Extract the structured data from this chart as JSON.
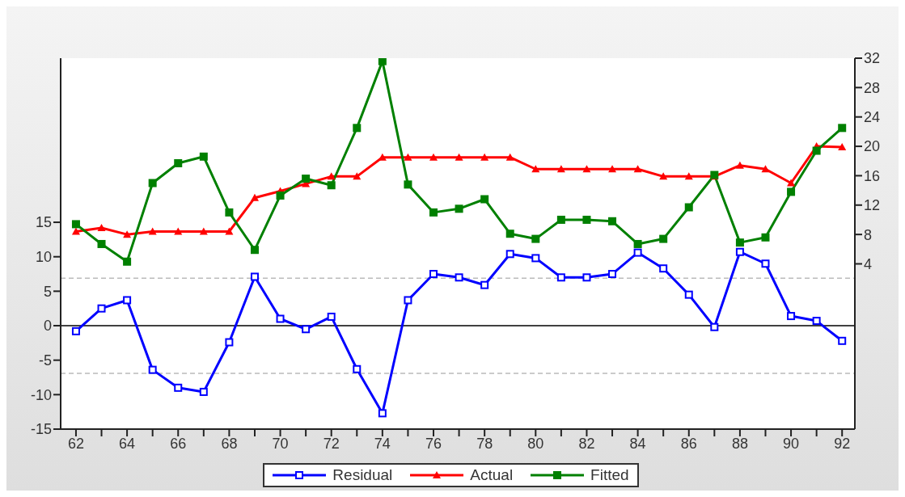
{
  "chart_data": {
    "type": "line",
    "x": [
      62,
      63,
      64,
      65,
      66,
      67,
      68,
      69,
      70,
      71,
      72,
      73,
      74,
      75,
      76,
      77,
      78,
      79,
      80,
      81,
      82,
      83,
      84,
      85,
      86,
      87,
      88,
      89,
      90,
      91,
      92
    ],
    "series": [
      {
        "name": "Residual",
        "color": "#0000ff",
        "marker": "square",
        "axis": "y",
        "values": [
          -0.8,
          2.5,
          3.7,
          -6.4,
          -9.0,
          -9.6,
          -2.4,
          7.1,
          1.0,
          -0.5,
          1.3,
          -6.3,
          -12.7,
          3.7,
          7.5,
          7.0,
          5.9,
          10.4,
          9.8,
          7.0,
          7.0,
          7.5,
          10.6,
          8.3,
          4.5,
          -0.2,
          10.7,
          9.0,
          1.4,
          0.7,
          -2.2
        ]
      },
      {
        "name": "Actual",
        "color": "#ff0000",
        "marker": "triangle",
        "axis": "y2",
        "values": [
          8.4,
          8.9,
          8.0,
          8.4,
          8.4,
          8.4,
          8.4,
          13.0,
          13.9,
          14.9,
          15.9,
          15.9,
          18.5,
          18.5,
          18.5,
          18.5,
          18.5,
          18.5,
          16.9,
          16.9,
          16.9,
          16.9,
          16.9,
          15.9,
          15.9,
          15.9,
          17.4,
          16.9,
          15.0,
          20.0,
          19.9
        ]
      },
      {
        "name": "Fitted",
        "color": "#008000",
        "marker": "square",
        "axis": "y2",
        "values": [
          9.4,
          6.7,
          4.3,
          15.0,
          17.7,
          18.6,
          11.0,
          5.9,
          13.3,
          15.6,
          14.7,
          22.5,
          31.6,
          14.8,
          11.0,
          11.5,
          12.8,
          8.1,
          7.4,
          10.0,
          10.0,
          9.8,
          6.7,
          7.4,
          11.7,
          16.1,
          6.9,
          7.6,
          13.8,
          19.4,
          22.5
        ]
      }
    ],
    "xlim": [
      61.4,
      92.5
    ],
    "xticks": [
      62,
      {
        "value": 63,
        "label": null
      },
      64,
      {
        "value": 65,
        "label": null
      },
      66,
      {
        "value": 67,
        "label": null
      },
      68,
      {
        "value": 69,
        "label": null
      },
      70,
      {
        "value": 71,
        "label": null
      },
      72,
      {
        "value": 73,
        "label": null
      },
      74,
      {
        "value": 75,
        "label": null
      },
      76,
      {
        "value": 77,
        "label": null
      },
      78,
      {
        "value": 79,
        "label": null
      },
      80,
      {
        "value": 81,
        "label": null
      },
      82,
      {
        "value": 83,
        "label": null
      },
      84,
      {
        "value": 85,
        "label": null
      },
      86,
      {
        "value": 87,
        "label": null
      },
      88,
      {
        "value": 89,
        "label": null
      },
      90,
      {
        "value": 91,
        "label": null
      },
      92
    ],
    "ylim": [
      -15,
      38.8
    ],
    "yticks": [
      -15,
      -10,
      -5,
      0,
      5,
      10,
      15
    ],
    "y2lim": [
      -18.5,
      32
    ],
    "y2ticks": [
      4,
      8,
      12,
      16,
      20,
      24,
      28,
      32
    ],
    "ref_lines": [
      {
        "axis": "y",
        "value": 0,
        "label": null,
        "color": "#000000",
        "line_style": "solid"
      },
      {
        "axis": "y",
        "value": 6.9,
        "label": null,
        "color": "#bbbbbb",
        "line_style": "dashed"
      },
      {
        "axis": "y",
        "value": -6.9,
        "label": null,
        "color": "#bbbbbb",
        "line_style": "dashed"
      }
    ],
    "grid": false,
    "legend": "bottom",
    "line_style": "solid"
  }
}
